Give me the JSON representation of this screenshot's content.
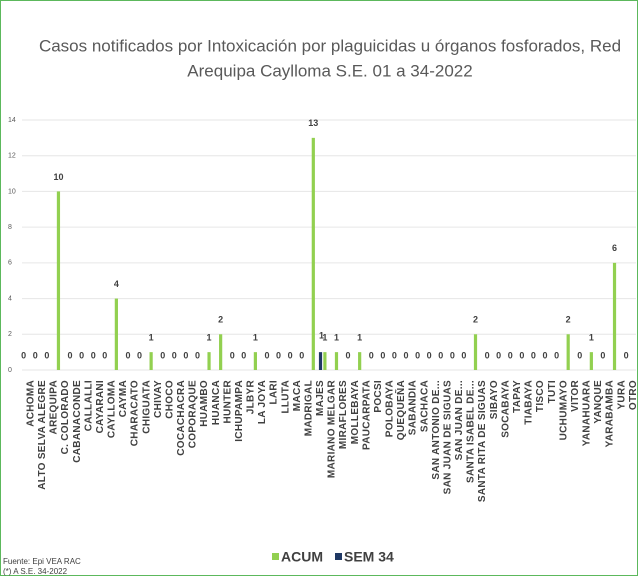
{
  "chart_data": {
    "type": "bar",
    "title_lines": [
      "Casos notificados por Intoxicación por plaguicidas u órganos fosforados, Red",
      "Arequipa Caylloma S.E. 01 a 34-2022"
    ],
    "categories": [
      "ACHOMA",
      "ALTO SELVA ALEGRE",
      "AREQUIPA",
      "C. COLORADO",
      "CABANACONDE",
      "CALLALLI",
      "CAYARANI",
      "CAYLLOMA",
      "CAYMA",
      "CHARACATO",
      "CHIGUATA",
      "CHIVAY",
      "CHOCO",
      "COCACHACRA",
      "COPORAQUE",
      "HUAMBO",
      "HUANCA",
      "HUNTER",
      "ICHUPAMPA",
      "JLBYR",
      "LA JOYA",
      "LARI",
      "LLUTA",
      "MACA",
      "MADRIGAL",
      "MAJES",
      "MARIANO MELGAR",
      "MIRAFLORES",
      "MOLLEBAYA",
      "PAUCARPATA",
      "POCSI",
      "POLOBAYA",
      "QUEQUEÑA",
      "SABANDIA",
      "SACHACA",
      "SAN ANTONIO DE...",
      "SAN JUAN DE SIGUAS",
      "SAN JUAN DE...",
      "SANTA ISABEL DE...",
      "SANTA RITA DE SIGUAS",
      "SIBAYO",
      "SOCABAYA",
      "TAPAY",
      "TIABAYA",
      "TISCO",
      "TUTI",
      "UCHUMAYO",
      "VITOR",
      "YANAHUARA",
      "YANQUE",
      "YARABAMBA",
      "YURA",
      "OTRO"
    ],
    "series": [
      {
        "name": "ACUM",
        "color": "#92d050",
        "values": [
          0,
          0,
          0,
          10,
          0,
          0,
          0,
          0,
          4,
          0,
          0,
          1,
          0,
          0,
          0,
          0,
          1,
          2,
          0,
          0,
          1,
          0,
          0,
          0,
          0,
          13,
          1,
          1,
          0,
          1,
          0,
          0,
          0,
          0,
          0,
          0,
          0,
          0,
          0,
          2,
          0,
          0,
          0,
          0,
          0,
          0,
          0,
          2,
          0,
          1,
          0,
          6,
          0
        ]
      },
      {
        "name": "SEM 34",
        "color": "#1f3864",
        "values": [
          null,
          null,
          null,
          null,
          null,
          null,
          null,
          null,
          null,
          null,
          null,
          null,
          null,
          null,
          null,
          null,
          null,
          null,
          null,
          null,
          null,
          null,
          null,
          null,
          null,
          1,
          null,
          null,
          null,
          null,
          null,
          null,
          null,
          null,
          null,
          null,
          null,
          null,
          null,
          null,
          null,
          null,
          null,
          null,
          null,
          null,
          null,
          null,
          null,
          null,
          null,
          null,
          null
        ]
      }
    ],
    "ylim": [
      0,
      14
    ],
    "yticks": [
      0,
      2,
      4,
      6,
      8,
      10,
      12,
      14
    ],
    "grid": true,
    "legend": "bottom",
    "footnotes": [
      "Fuente: Epi VEA RAC",
      "(*) A S.E. 34-2022"
    ]
  }
}
